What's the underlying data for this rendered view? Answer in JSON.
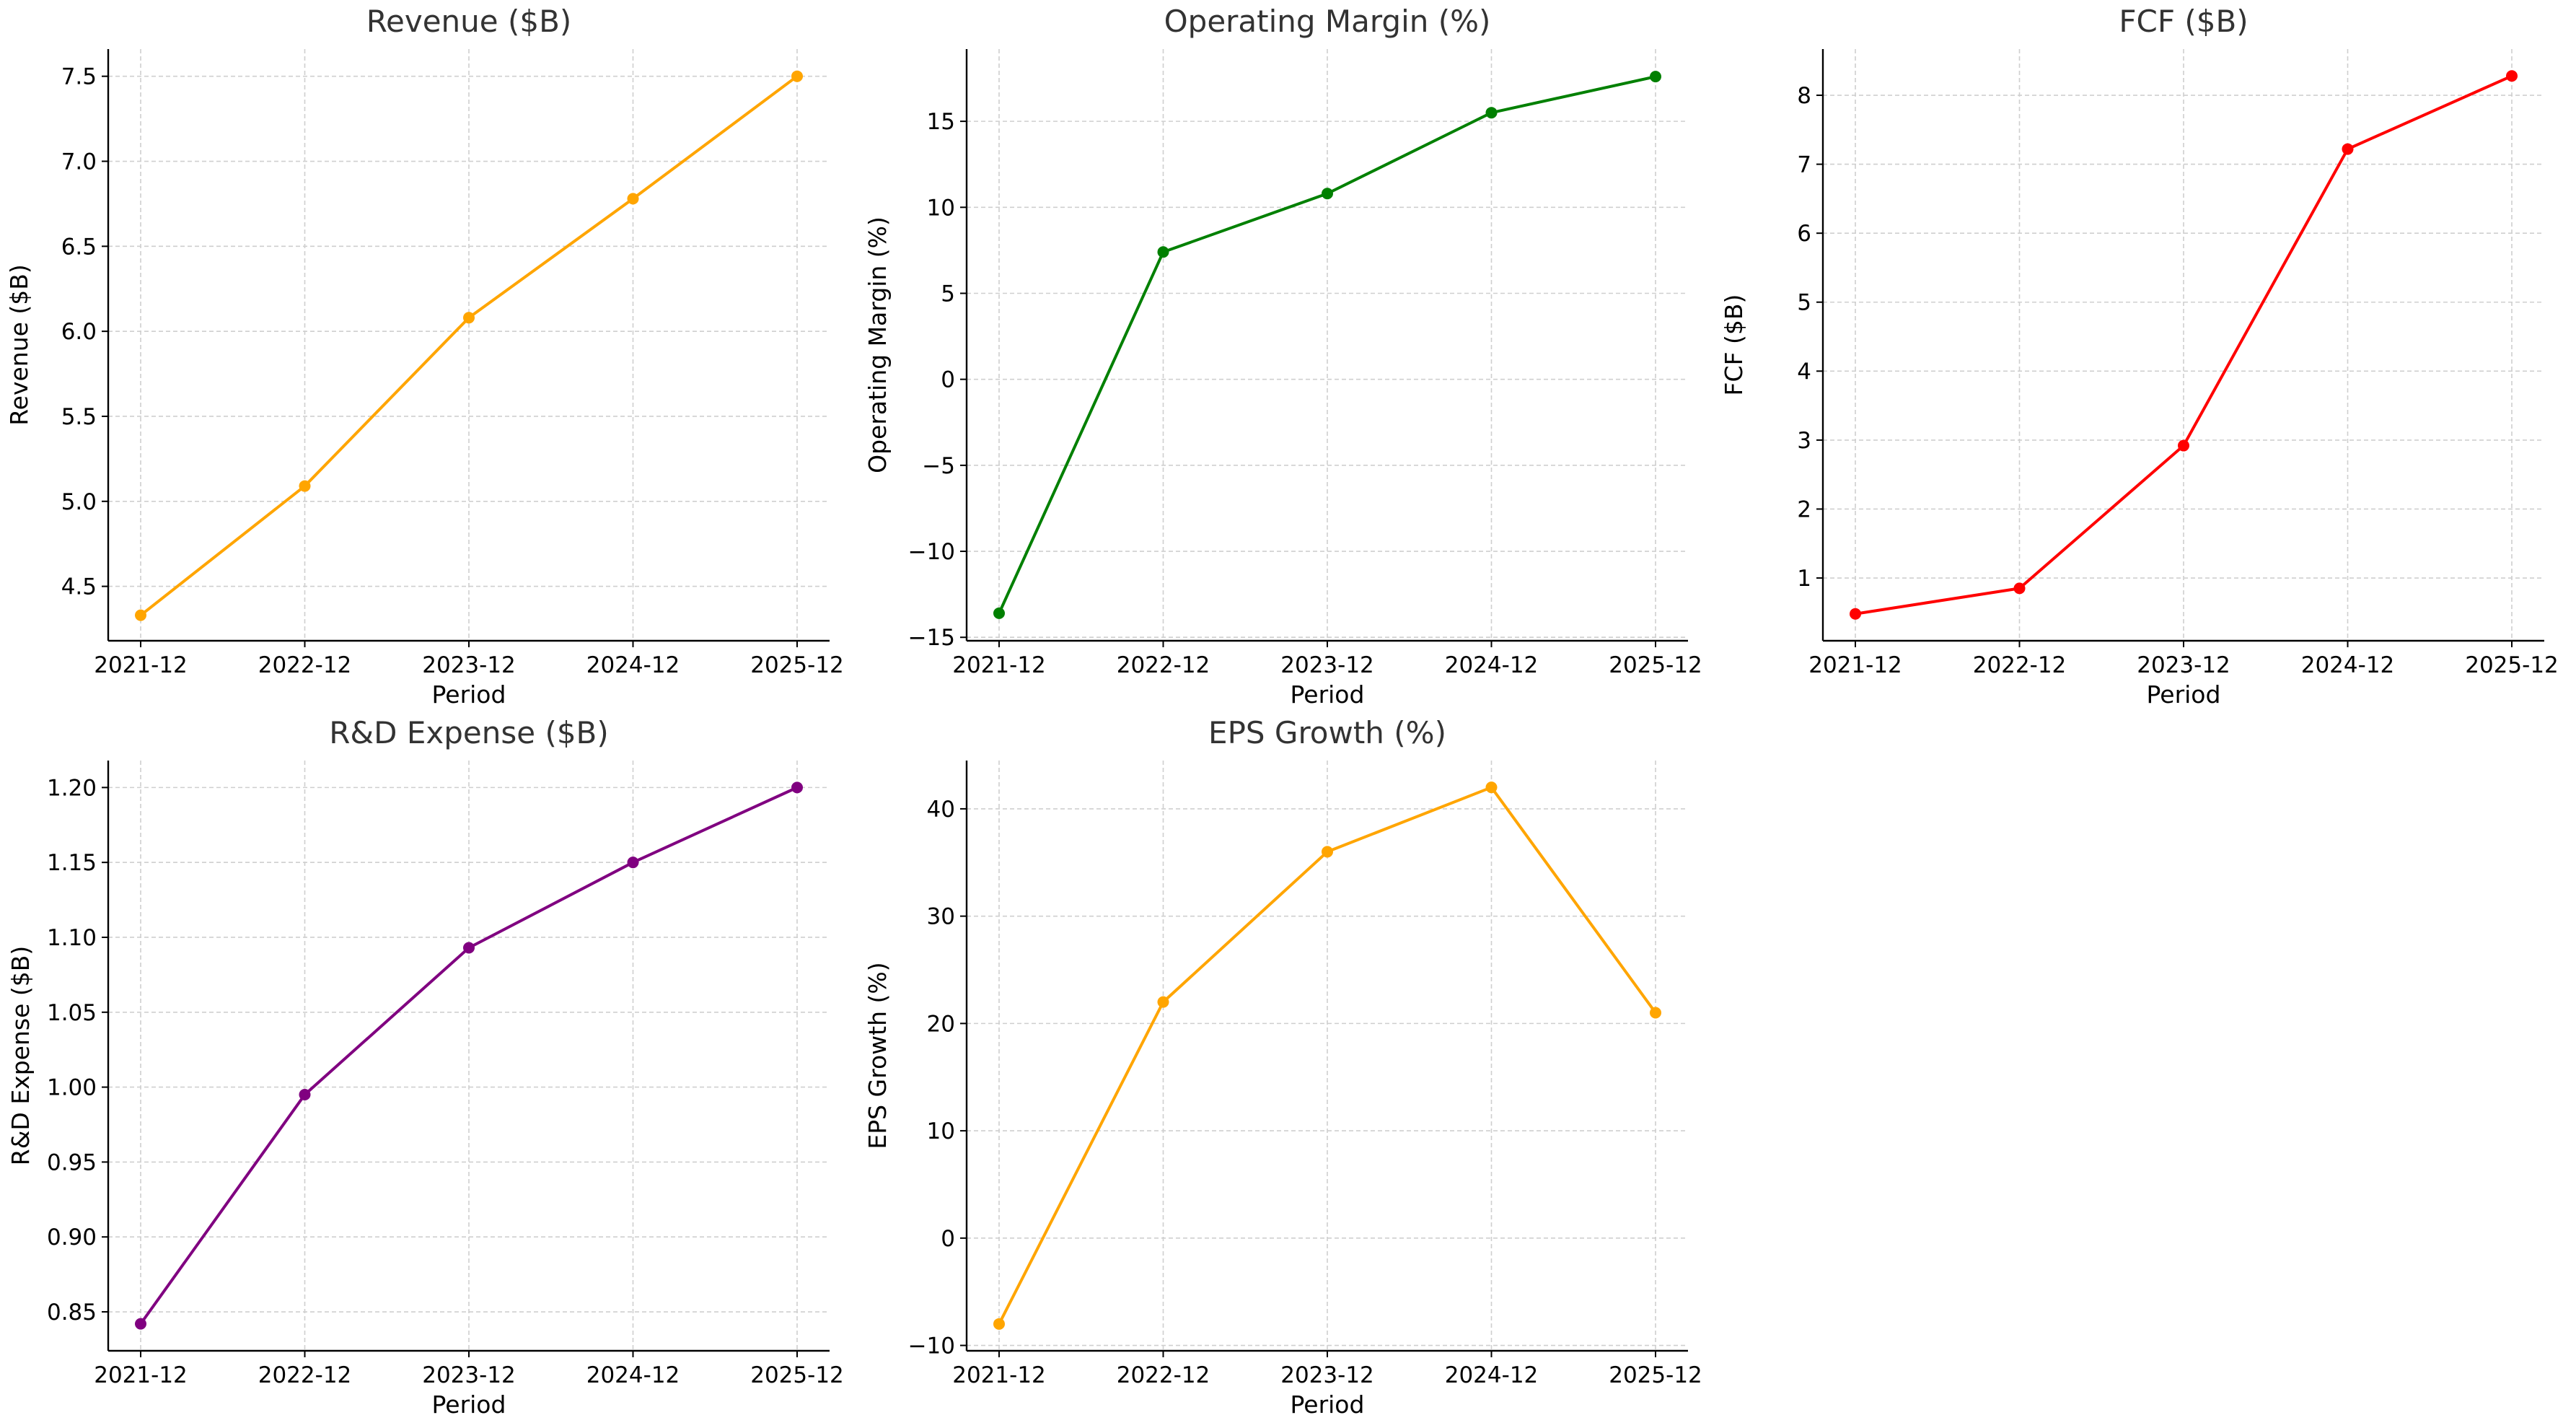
{
  "chart_data": [
    {
      "type": "line",
      "title": "Revenue ($B)",
      "xlabel": "Period",
      "ylabel": "Revenue ($B)",
      "categories": [
        "2021-12",
        "2022-12",
        "2023-12",
        "2024-12",
        "2025-12"
      ],
      "values": [
        4.33,
        5.09,
        6.08,
        6.78,
        7.5
      ],
      "color": "#FFA500",
      "ylim": [
        4.18,
        7.66
      ],
      "yticks": [
        4.5,
        5.0,
        5.5,
        6.0,
        6.5,
        7.0,
        7.5
      ],
      "ytick_labels": [
        "4.5",
        "5.0",
        "5.5",
        "6.0",
        "6.5",
        "7.0",
        "7.5"
      ],
      "grid": true
    },
    {
      "type": "line",
      "title": "Operating Margin (%)",
      "xlabel": "Period",
      "ylabel": "Operating Margin (%)",
      "categories": [
        "2021-12",
        "2022-12",
        "2023-12",
        "2024-12",
        "2025-12"
      ],
      "values": [
        -13.6,
        7.4,
        10.8,
        15.5,
        17.6
      ],
      "color": "#008000",
      "ylim": [
        -15.2,
        19.2
      ],
      "yticks": [
        -15,
        -10,
        -5,
        0,
        5,
        10,
        15
      ],
      "ytick_labels": [
        "−15",
        "−10",
        "−5",
        "0",
        "5",
        "10",
        "15"
      ],
      "grid": true
    },
    {
      "type": "line",
      "title": "FCF ($B)",
      "xlabel": "Period",
      "ylabel": "FCF ($B)",
      "categories": [
        "2021-12",
        "2022-12",
        "2023-12",
        "2024-12",
        "2025-12"
      ],
      "values": [
        0.48,
        0.85,
        2.92,
        7.22,
        8.28
      ],
      "color": "#FF0000",
      "ylim": [
        0.09,
        8.67
      ],
      "yticks": [
        1,
        2,
        3,
        4,
        5,
        6,
        7,
        8
      ],
      "ytick_labels": [
        "1",
        "2",
        "3",
        "4",
        "5",
        "6",
        "7",
        "8"
      ],
      "grid": true
    },
    {
      "type": "line",
      "title": "R&D Expense ($B)",
      "xlabel": "Period",
      "ylabel": "R&D Expense ($B)",
      "categories": [
        "2021-12",
        "2022-12",
        "2023-12",
        "2024-12",
        "2025-12"
      ],
      "values": [
        0.842,
        0.995,
        1.093,
        1.15,
        1.2
      ],
      "color": "#800080",
      "ylim": [
        0.824,
        1.218
      ],
      "yticks": [
        0.85,
        0.9,
        0.95,
        1.0,
        1.05,
        1.1,
        1.15,
        1.2
      ],
      "ytick_labels": [
        "0.85",
        "0.90",
        "0.95",
        "1.00",
        "1.05",
        "1.10",
        "1.15",
        "1.20"
      ],
      "grid": true
    },
    {
      "type": "line",
      "title": "EPS Growth (%)",
      "xlabel": "Period",
      "ylabel": "EPS Growth (%)",
      "categories": [
        "2021-12",
        "2022-12",
        "2023-12",
        "2024-12",
        "2025-12"
      ],
      "values": [
        -8,
        22,
        36,
        42,
        21
      ],
      "color": "#FFA500",
      "ylim": [
        -10.5,
        44.5
      ],
      "yticks": [
        -10,
        0,
        10,
        20,
        30,
        40
      ],
      "ytick_labels": [
        "−10",
        "0",
        "10",
        "20",
        "30",
        "40"
      ],
      "grid": true
    }
  ]
}
